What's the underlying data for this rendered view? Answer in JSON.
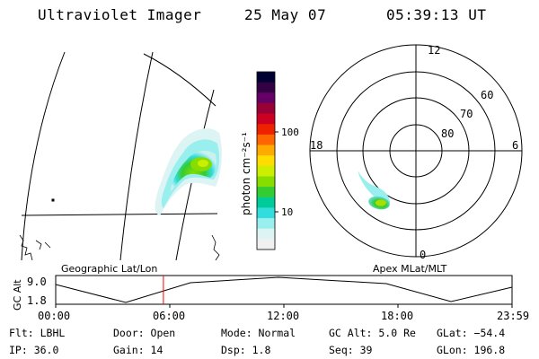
{
  "header": {
    "title": "Ultraviolet Imager",
    "date": "25 May 07",
    "time": "05:39:13 UT"
  },
  "colorbar": {
    "label": "photon cm⁻²s⁻¹",
    "ticks": [
      "100",
      "10"
    ],
    "colors": [
      "#000033",
      "#330044",
      "#660066",
      "#990033",
      "#cc0022",
      "#ee2200",
      "#ff6600",
      "#ffaa00",
      "#ffdd00",
      "#ccee00",
      "#88dd00",
      "#33cc33",
      "#00cc99",
      "#33dddd",
      "#99eeee",
      "#ddf4f4",
      "#f0f0f0"
    ]
  },
  "polar_plot": {
    "clock_labels": {
      "top": "12",
      "left": "18",
      "right": "6",
      "bottom": "0"
    },
    "lat_labels": [
      "60",
      "70",
      "80"
    ]
  },
  "map_labels": {
    "geographic": "Geographic Lat/Lon",
    "apex": "Apex MLat/MLT"
  },
  "orbit_panel": {
    "axis_label": "GC Alt",
    "y_ticks": [
      "9.0",
      "1.8"
    ],
    "x_ticks": [
      "00:00",
      "06:00",
      "12:00",
      "18:00",
      "23:59"
    ],
    "current_time_fraction": 0.236,
    "marker_color": "#ff0000"
  },
  "info": {
    "row1": {
      "flt": "Flt: LBHL",
      "door": "Door: Open",
      "mode": "Mode: Normal",
      "gcalt": "GC Alt: 5.0 Re",
      "glat": "GLat: −54.4"
    },
    "row2": {
      "ip": "IP: 36.0",
      "gain": "Gain: 14",
      "dsp": "Dsp:   1.8",
      "seq": "Seq: 39",
      "glon": "GLon: 196.8"
    }
  }
}
